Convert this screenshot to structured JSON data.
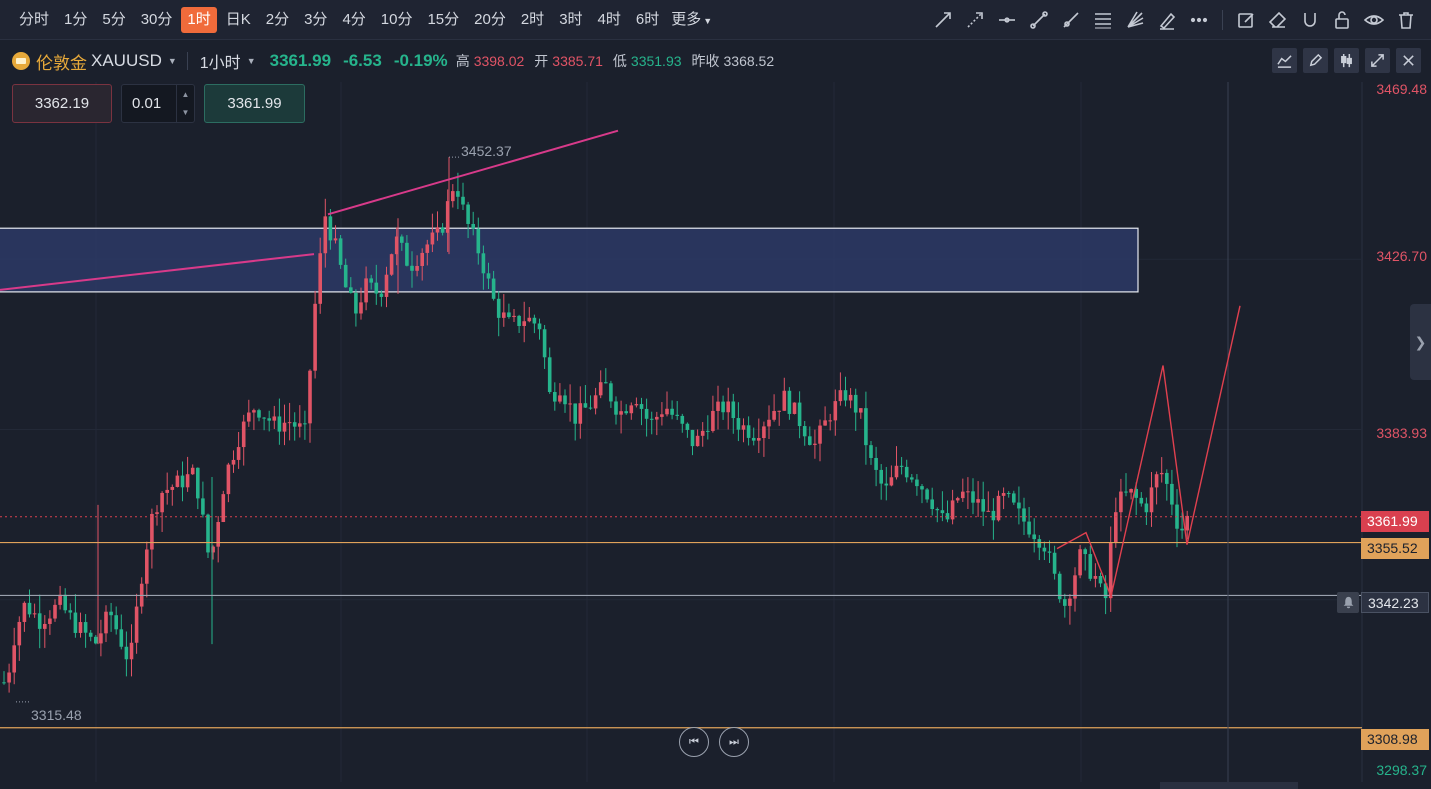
{
  "timeframes": [
    {
      "label": "分时",
      "active": false
    },
    {
      "label": "1分",
      "active": false
    },
    {
      "label": "5分",
      "active": false
    },
    {
      "label": "30分",
      "active": false
    },
    {
      "label": "1时",
      "active": true
    },
    {
      "label": "日K",
      "active": false
    },
    {
      "label": "2分",
      "active": false
    },
    {
      "label": "3分",
      "active": false
    },
    {
      "label": "4分",
      "active": false
    },
    {
      "label": "10分",
      "active": false
    },
    {
      "label": "15分",
      "active": false
    },
    {
      "label": "20分",
      "active": false
    },
    {
      "label": "2时",
      "active": false
    },
    {
      "label": "3时",
      "active": false
    },
    {
      "label": "4时",
      "active": false
    },
    {
      "label": "6时",
      "active": false
    }
  ],
  "more_label": "更多",
  "drawing_tools": [
    "arrow-line-icon",
    "dashed-arrow-icon",
    "horizontal-line-icon",
    "trend-segment-icon",
    "ray-icon",
    "fibonacci-icon",
    "fan-icon",
    "brush-icon",
    "more-dots-icon"
  ],
  "right_tools": [
    "edit-icon",
    "eraser-icon",
    "magnet-icon",
    "unlock-icon",
    "eye-icon",
    "trash-icon"
  ],
  "symbol": {
    "name": "伦敦金",
    "code": "XAUUSD",
    "interval": "1小时",
    "last": "3361.99",
    "change": "-6.53",
    "change_pct": "-0.19%",
    "high_label": "高",
    "high": "3398.02",
    "open_label": "开",
    "open": "3385.71",
    "low_label": "低",
    "low": "3351.93",
    "prev_label": "昨收",
    "prev_close": "3368.52"
  },
  "order": {
    "sell_price": "3362.19",
    "quantity": "0.01",
    "buy_price": "3361.99"
  },
  "chart_data": {
    "type": "candlestick",
    "y_axis_labels": [
      "3469.48",
      "3426.70",
      "3383.93",
      "3298.37"
    ],
    "ylim": [
      3298.37,
      3469.48
    ],
    "current_price": "3361.99",
    "horizontal_lines": [
      "3355.52",
      "3342.23",
      "3308.98"
    ],
    "annotations": {
      "high_marker": "3452.37",
      "low_marker": "3315.48"
    },
    "zone": {
      "top": 3434.5,
      "bottom": 3418.5
    },
    "colors": {
      "up": "#e05466",
      "down": "#26b48c",
      "zone": "#2b3a66",
      "trend": "#d83a8a"
    }
  },
  "nav": {
    "back_icon": "skip-back-icon",
    "forward_icon": "skip-forward-icon"
  },
  "colors": {
    "accent": "#f06b3b",
    "up": "#e05466",
    "down": "#26b48c",
    "level": "#e0a25a"
  }
}
